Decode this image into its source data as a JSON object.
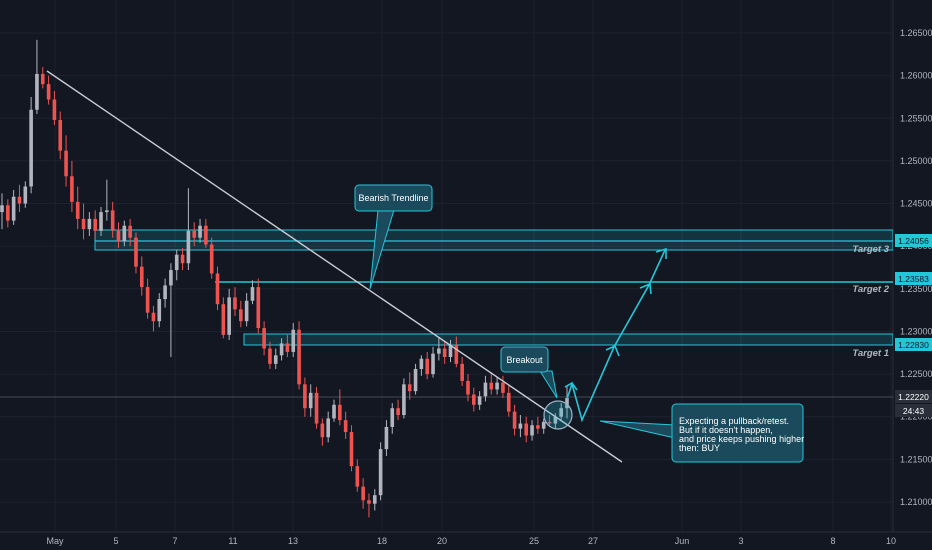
{
  "colors": {
    "background": "#131722",
    "bull": "#b2b5be",
    "bear": "#ef5350",
    "zone": "#26c6da",
    "trendline": "#c9ccd4",
    "grid": "#1e2230"
  },
  "chart_data": {
    "type": "candlestick",
    "y_ticks": [
      "1.26500",
      "1.26000",
      "1.25500",
      "1.25000",
      "1.24500",
      "1.24000",
      "1.23500",
      "1.23000",
      "1.22500",
      "1.22000",
      "1.21500",
      "1.21000"
    ],
    "x_ticks": [
      "May",
      "5",
      "7",
      "11",
      "13",
      "18",
      "20",
      "25",
      "27",
      "Jun",
      "3",
      "8",
      "10"
    ],
    "ylim": [
      1.2075,
      1.2675
    ],
    "grid": true,
    "last_price": "1.22220",
    "countdown": "24:43",
    "targets": [
      {
        "label": "Target 1",
        "price": 1.2283,
        "price_tag": "1.22830"
      },
      {
        "label": "Target 2",
        "price": 1.23583,
        "price_tag": "1.23583"
      },
      {
        "label": "Target 3",
        "price": 1.24056,
        "price_tag": "1.24056"
      }
    ],
    "annotations": {
      "trendline_label": "Bearish Trendline",
      "breakout_label": "Breakout",
      "note_lines": [
        "Expecting a pullback/retest.",
        "But if it doesn't happen,",
        "and price keeps pushing higher",
        "then: BUY"
      ]
    },
    "candles": [
      {
        "o": 1.244,
        "h": 1.2462,
        "l": 1.242,
        "c": 1.2448
      },
      {
        "o": 1.2448,
        "h": 1.2455,
        "l": 1.2422,
        "c": 1.243
      },
      {
        "o": 1.243,
        "h": 1.2466,
        "l": 1.2425,
        "c": 1.2458
      },
      {
        "o": 1.2458,
        "h": 1.2472,
        "l": 1.244,
        "c": 1.245
      },
      {
        "o": 1.245,
        "h": 1.2476,
        "l": 1.2445,
        "c": 1.247
      },
      {
        "o": 1.247,
        "h": 1.2575,
        "l": 1.2462,
        "c": 1.256
      },
      {
        "o": 1.256,
        "h": 1.2642,
        "l": 1.2555,
        "c": 1.2602
      },
      {
        "o": 1.2602,
        "h": 1.261,
        "l": 1.2585,
        "c": 1.259
      },
      {
        "o": 1.259,
        "h": 1.26,
        "l": 1.2566,
        "c": 1.2572
      },
      {
        "o": 1.2572,
        "h": 1.2582,
        "l": 1.2542,
        "c": 1.2548
      },
      {
        "o": 1.2548,
        "h": 1.2558,
        "l": 1.2502,
        "c": 1.2512
      },
      {
        "o": 1.2512,
        "h": 1.253,
        "l": 1.247,
        "c": 1.2482
      },
      {
        "o": 1.2482,
        "h": 1.25,
        "l": 1.244,
        "c": 1.2452
      },
      {
        "o": 1.2452,
        "h": 1.247,
        "l": 1.242,
        "c": 1.2432
      },
      {
        "o": 1.2432,
        "h": 1.245,
        "l": 1.2408,
        "c": 1.242
      },
      {
        "o": 1.242,
        "h": 1.244,
        "l": 1.2412,
        "c": 1.2432
      },
      {
        "o": 1.2432,
        "h": 1.2442,
        "l": 1.2408,
        "c": 1.2418
      },
      {
        "o": 1.2418,
        "h": 1.2446,
        "l": 1.2412,
        "c": 1.244
      },
      {
        "o": 1.244,
        "h": 1.2478,
        "l": 1.243,
        "c": 1.2442
      },
      {
        "o": 1.2442,
        "h": 1.2452,
        "l": 1.241,
        "c": 1.2418
      },
      {
        "o": 1.2418,
        "h": 1.2428,
        "l": 1.2398,
        "c": 1.2406
      },
      {
        "o": 1.2406,
        "h": 1.243,
        "l": 1.24,
        "c": 1.2424
      },
      {
        "o": 1.2424,
        "h": 1.2432,
        "l": 1.24,
        "c": 1.241
      },
      {
        "o": 1.241,
        "h": 1.2416,
        "l": 1.2368,
        "c": 1.2376
      },
      {
        "o": 1.2376,
        "h": 1.2388,
        "l": 1.2342,
        "c": 1.2352
      },
      {
        "o": 1.2352,
        "h": 1.2362,
        "l": 1.2315,
        "c": 1.2322
      },
      {
        "o": 1.2322,
        "h": 1.233,
        "l": 1.23,
        "c": 1.2312
      },
      {
        "o": 1.2312,
        "h": 1.2345,
        "l": 1.2305,
        "c": 1.2338
      },
      {
        "o": 1.2338,
        "h": 1.2362,
        "l": 1.2328,
        "c": 1.2354
      },
      {
        "o": 1.2354,
        "h": 1.238,
        "l": 1.227,
        "c": 1.2372
      },
      {
        "o": 1.2372,
        "h": 1.2396,
        "l": 1.236,
        "c": 1.239
      },
      {
        "o": 1.239,
        "h": 1.2398,
        "l": 1.2372,
        "c": 1.238
      },
      {
        "o": 1.238,
        "h": 1.2468,
        "l": 1.2372,
        "c": 1.2418
      },
      {
        "o": 1.2418,
        "h": 1.2428,
        "l": 1.24,
        "c": 1.241
      },
      {
        "o": 1.241,
        "h": 1.2432,
        "l": 1.2404,
        "c": 1.2424
      },
      {
        "o": 1.2424,
        "h": 1.2432,
        "l": 1.2398,
        "c": 1.2402
      },
      {
        "o": 1.2402,
        "h": 1.241,
        "l": 1.2362,
        "c": 1.2368
      },
      {
        "o": 1.2368,
        "h": 1.2376,
        "l": 1.2325,
        "c": 1.2332
      },
      {
        "o": 1.2332,
        "h": 1.234,
        "l": 1.2292,
        "c": 1.2296
      },
      {
        "o": 1.2296,
        "h": 1.235,
        "l": 1.229,
        "c": 1.234
      },
      {
        "o": 1.234,
        "h": 1.2352,
        "l": 1.2318,
        "c": 1.2326
      },
      {
        "o": 1.2326,
        "h": 1.2336,
        "l": 1.2305,
        "c": 1.2312
      },
      {
        "o": 1.2312,
        "h": 1.2345,
        "l": 1.2306,
        "c": 1.2336
      },
      {
        "o": 1.2336,
        "h": 1.236,
        "l": 1.2332,
        "c": 1.2352
      },
      {
        "o": 1.2352,
        "h": 1.2362,
        "l": 1.2298,
        "c": 1.2304
      },
      {
        "o": 1.2304,
        "h": 1.2312,
        "l": 1.2272,
        "c": 1.228
      },
      {
        "o": 1.228,
        "h": 1.2288,
        "l": 1.2256,
        "c": 1.2262
      },
      {
        "o": 1.2262,
        "h": 1.228,
        "l": 1.2256,
        "c": 1.2272
      },
      {
        "o": 1.2272,
        "h": 1.2292,
        "l": 1.2266,
        "c": 1.2286
      },
      {
        "o": 1.2286,
        "h": 1.2296,
        "l": 1.227,
        "c": 1.2276
      },
      {
        "o": 1.2276,
        "h": 1.231,
        "l": 1.227,
        "c": 1.2302
      },
      {
        "o": 1.2302,
        "h": 1.2312,
        "l": 1.2232,
        "c": 1.2238
      },
      {
        "o": 1.2238,
        "h": 1.2246,
        "l": 1.22,
        "c": 1.221
      },
      {
        "o": 1.221,
        "h": 1.2238,
        "l": 1.22,
        "c": 1.2228
      },
      {
        "o": 1.2228,
        "h": 1.2235,
        "l": 1.2186,
        "c": 1.2192
      },
      {
        "o": 1.2192,
        "h": 1.2198,
        "l": 1.2166,
        "c": 1.2176
      },
      {
        "o": 1.2176,
        "h": 1.2206,
        "l": 1.217,
        "c": 1.2198
      },
      {
        "o": 1.2198,
        "h": 1.222,
        "l": 1.2194,
        "c": 1.2214
      },
      {
        "o": 1.2214,
        "h": 1.2232,
        "l": 1.219,
        "c": 1.2196
      },
      {
        "o": 1.2196,
        "h": 1.2206,
        "l": 1.2174,
        "c": 1.2182
      },
      {
        "o": 1.2182,
        "h": 1.219,
        "l": 1.2136,
        "c": 1.2142
      },
      {
        "o": 1.2142,
        "h": 1.215,
        "l": 1.2112,
        "c": 1.2118
      },
      {
        "o": 1.2118,
        "h": 1.2128,
        "l": 1.2092,
        "c": 1.2102
      },
      {
        "o": 1.2102,
        "h": 1.211,
        "l": 1.2082,
        "c": 1.2098
      },
      {
        "o": 1.2098,
        "h": 1.2115,
        "l": 1.209,
        "c": 1.2108
      },
      {
        "o": 1.2108,
        "h": 1.217,
        "l": 1.2102,
        "c": 1.2162
      },
      {
        "o": 1.2162,
        "h": 1.2196,
        "l": 1.2154,
        "c": 1.2188
      },
      {
        "o": 1.2188,
        "h": 1.2216,
        "l": 1.218,
        "c": 1.221
      },
      {
        "o": 1.221,
        "h": 1.222,
        "l": 1.2196,
        "c": 1.2202
      },
      {
        "o": 1.2202,
        "h": 1.2245,
        "l": 1.2198,
        "c": 1.2238
      },
      {
        "o": 1.2238,
        "h": 1.2252,
        "l": 1.222,
        "c": 1.223
      },
      {
        "o": 1.223,
        "h": 1.2262,
        "l": 1.2226,
        "c": 1.2256
      },
      {
        "o": 1.2256,
        "h": 1.2272,
        "l": 1.2248,
        "c": 1.2268
      },
      {
        "o": 1.2268,
        "h": 1.2276,
        "l": 1.2244,
        "c": 1.225
      },
      {
        "o": 1.225,
        "h": 1.2282,
        "l": 1.2246,
        "c": 1.2274
      },
      {
        "o": 1.2274,
        "h": 1.2292,
        "l": 1.2266,
        "c": 1.228
      },
      {
        "o": 1.228,
        "h": 1.2288,
        "l": 1.2262,
        "c": 1.227
      },
      {
        "o": 1.227,
        "h": 1.229,
        "l": 1.2264,
        "c": 1.2284
      },
      {
        "o": 1.2284,
        "h": 1.2294,
        "l": 1.2258,
        "c": 1.2262
      },
      {
        "o": 1.2262,
        "h": 1.227,
        "l": 1.2236,
        "c": 1.2242
      },
      {
        "o": 1.2242,
        "h": 1.225,
        "l": 1.2218,
        "c": 1.2226
      },
      {
        "o": 1.2226,
        "h": 1.2234,
        "l": 1.2206,
        "c": 1.2214
      },
      {
        "o": 1.2214,
        "h": 1.223,
        "l": 1.2208,
        "c": 1.2224
      },
      {
        "o": 1.2224,
        "h": 1.2248,
        "l": 1.2218,
        "c": 1.224
      },
      {
        "o": 1.224,
        "h": 1.2252,
        "l": 1.2226,
        "c": 1.2232
      },
      {
        "o": 1.2232,
        "h": 1.2246,
        "l": 1.2226,
        "c": 1.224
      },
      {
        "o": 1.224,
        "h": 1.2248,
        "l": 1.2222,
        "c": 1.2228
      },
      {
        "o": 1.2228,
        "h": 1.2236,
        "l": 1.22,
        "c": 1.2206
      },
      {
        "o": 1.2206,
        "h": 1.2214,
        "l": 1.2178,
        "c": 1.2186
      },
      {
        "o": 1.2186,
        "h": 1.2202,
        "l": 1.2176,
        "c": 1.2192
      },
      {
        "o": 1.2192,
        "h": 1.22,
        "l": 1.217,
        "c": 1.2178
      },
      {
        "o": 1.2178,
        "h": 1.2196,
        "l": 1.2172,
        "c": 1.219
      },
      {
        "o": 1.219,
        "h": 1.22,
        "l": 1.218,
        "c": 1.2186
      },
      {
        "o": 1.2186,
        "h": 1.2198,
        "l": 1.218,
        "c": 1.2194
      },
      {
        "o": 1.2194,
        "h": 1.2202,
        "l": 1.2188,
        "c": 1.2192
      },
      {
        "o": 1.2192,
        "h": 1.2204,
        "l": 1.2186,
        "c": 1.22
      },
      {
        "o": 1.22,
        "h": 1.2216,
        "l": 1.2196,
        "c": 1.221
      },
      {
        "o": 1.221,
        "h": 1.2236,
        "l": 1.2198,
        "c": 1.2222
      }
    ]
  }
}
